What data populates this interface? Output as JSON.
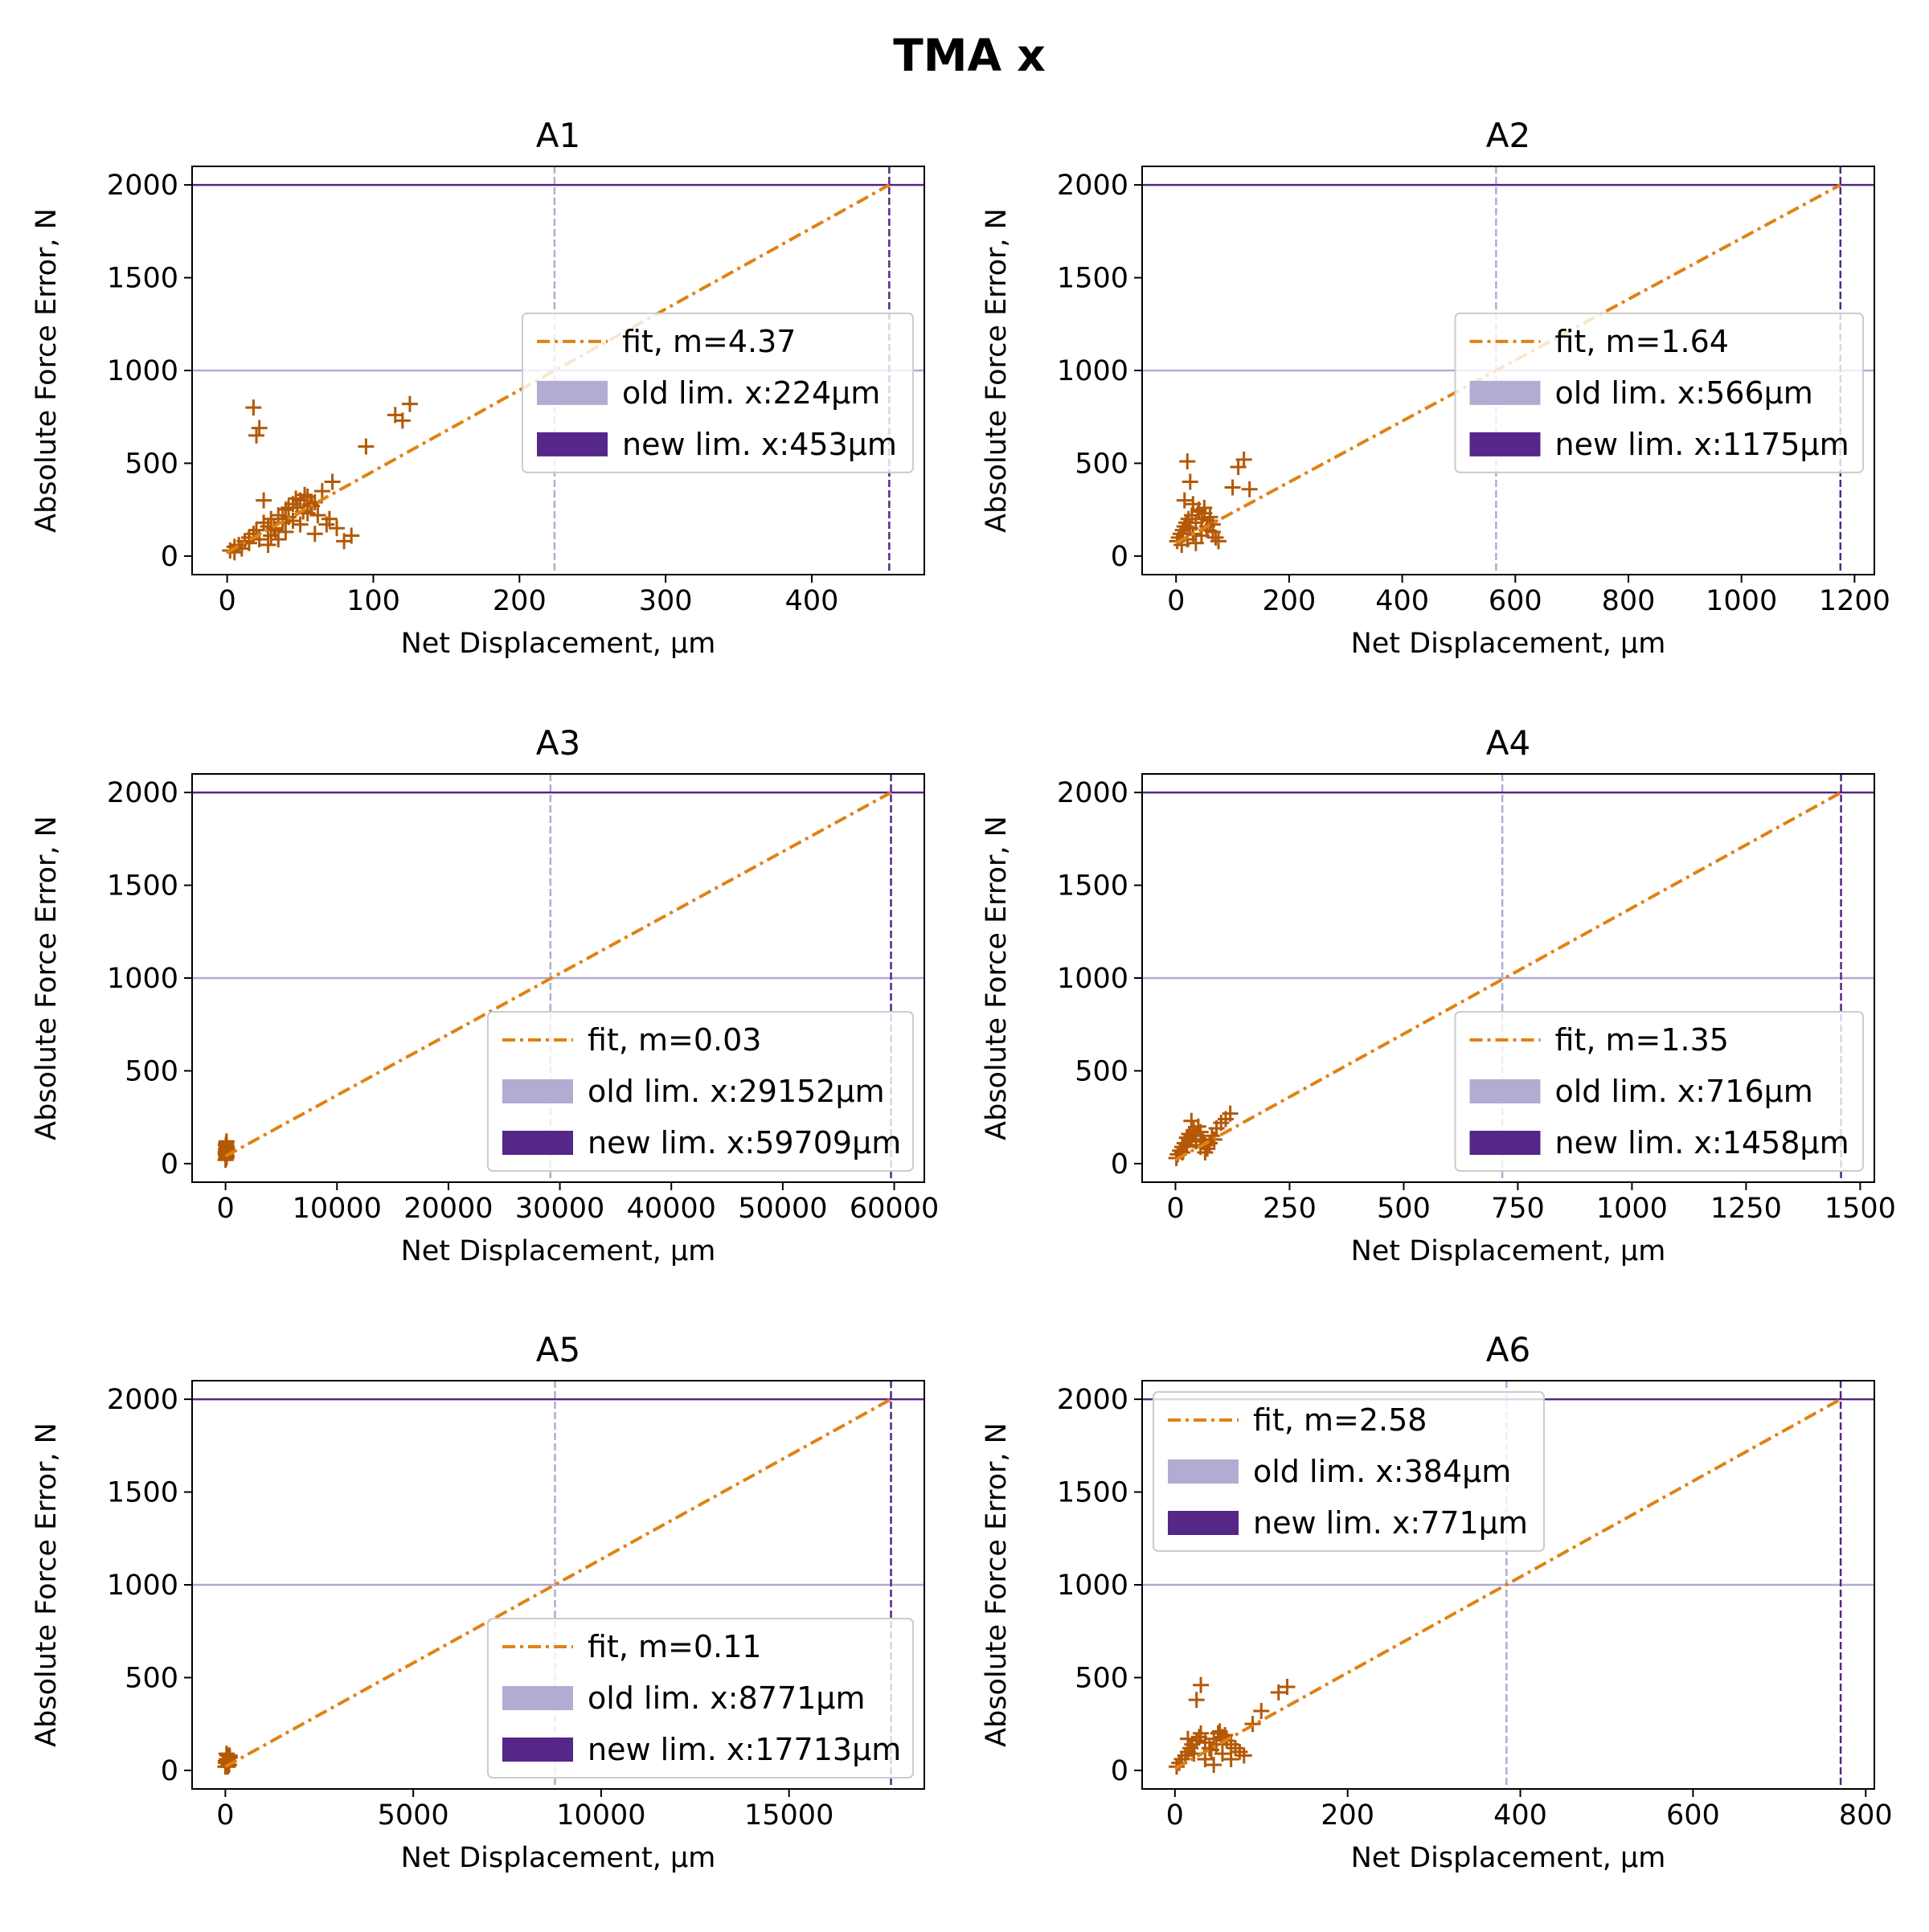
{
  "figure": {
    "title": "TMA x"
  },
  "colors": {
    "points": "#b35806",
    "fit": "#e08214",
    "old_limit": "#b2abd2",
    "new_limit": "#542788",
    "axes": "#000000"
  },
  "chart_data": [
    {
      "type": "scatter",
      "title": "A1",
      "xlabel": "Net Displacement, μm",
      "ylabel": "Absolute Force Error, N",
      "xlim": [
        -24,
        477
      ],
      "ylim": [
        -100,
        2100
      ],
      "xticks": [
        0,
        100,
        200,
        300,
        400
      ],
      "yticks": [
        0,
        500,
        1000,
        1500,
        2000
      ],
      "legend_position": "center-right",
      "fit": {
        "label": "fit, m=4.37",
        "slope": 4.37,
        "x": [
          0,
          453
        ],
        "y": [
          20,
          2000
        ]
      },
      "old_limit": {
        "label": "old lim. x:224μm",
        "x": 224,
        "y": 1000
      },
      "new_limit": {
        "label": "new lim. x:453μm",
        "x": 453,
        "y": 2000
      },
      "points": {
        "x": [
          2,
          5,
          8,
          12,
          15,
          18,
          20,
          22,
          25,
          28,
          30,
          32,
          35,
          38,
          40,
          42,
          45,
          48,
          50,
          52,
          55,
          58,
          60,
          65,
          70,
          75,
          80,
          85,
          20,
          22,
          18,
          25,
          95,
          115,
          120,
          125,
          5,
          10,
          15,
          30,
          40,
          50,
          35,
          45,
          55,
          60,
          28,
          33,
          38,
          42,
          47,
          53,
          57,
          62,
          68,
          72
        ],
        "y": [
          30,
          50,
          60,
          80,
          100,
          120,
          140,
          90,
          180,
          160,
          200,
          150,
          220,
          180,
          250,
          210,
          280,
          260,
          300,
          240,
          320,
          270,
          290,
          350,
          200,
          150,
          80,
          110,
          650,
          690,
          800,
          300,
          590,
          760,
          730,
          820,
          20,
          40,
          70,
          110,
          130,
          170,
          90,
          190,
          230,
          120,
          60,
          140,
          200,
          260,
          310,
          330,
          280,
          220,
          170,
          400
        ]
      }
    },
    {
      "type": "scatter",
      "title": "A2",
      "xlabel": "Net Displacement, μm",
      "ylabel": "Absolute Force Error, N",
      "xlim": [
        -60,
        1235
      ],
      "ylim": [
        -100,
        2100
      ],
      "xticks": [
        0,
        200,
        400,
        600,
        800,
        1000,
        1200
      ],
      "yticks": [
        0,
        500,
        1000,
        1500,
        2000
      ],
      "legend_position": "center-right",
      "fit": {
        "label": "fit, m=1.64",
        "slope": 1.64,
        "x": [
          0,
          1175
        ],
        "y": [
          70,
          2000
        ]
      },
      "old_limit": {
        "label": "old lim. x:566μm",
        "x": 566,
        "y": 1000
      },
      "new_limit": {
        "label": "new lim. x:1175μm",
        "x": 1175,
        "y": 2000
      },
      "points": {
        "x": [
          2,
          5,
          8,
          10,
          12,
          15,
          18,
          20,
          22,
          25,
          28,
          30,
          35,
          40,
          45,
          50,
          55,
          60,
          65,
          70,
          75,
          20,
          25,
          100,
          110,
          120,
          130,
          15,
          30,
          40,
          50,
          60,
          45,
          35,
          55,
          65
        ],
        "y": [
          80,
          100,
          120,
          60,
          140,
          160,
          180,
          90,
          200,
          150,
          220,
          120,
          180,
          240,
          200,
          260,
          160,
          210,
          130,
          100,
          80,
          510,
          400,
          370,
          480,
          520,
          360,
          300,
          280,
          250,
          230,
          190,
          110,
          70,
          140,
          170
        ]
      }
    },
    {
      "type": "scatter",
      "title": "A3",
      "xlabel": "Net Displacement, μm",
      "ylabel": "Absolute Force Error, N",
      "xlim": [
        -3000,
        62700
      ],
      "ylim": [
        -100,
        2100
      ],
      "xticks": [
        0,
        10000,
        20000,
        30000,
        40000,
        50000,
        60000
      ],
      "yticks": [
        0,
        500,
        1000,
        1500,
        2000
      ],
      "legend_position": "lower-right",
      "fit": {
        "label": "fit, m=0.03",
        "slope": 0.03,
        "x": [
          0,
          59709
        ],
        "y": [
          40,
          2000
        ]
      },
      "old_limit": {
        "label": "old lim. x:29152μm",
        "x": 29152,
        "y": 1000
      },
      "new_limit": {
        "label": "new lim. x:59709μm",
        "x": 59709,
        "y": 2000
      },
      "points": {
        "x": [
          0,
          20,
          40,
          60,
          80,
          100,
          120,
          30,
          50,
          70,
          90,
          10,
          110,
          65,
          45
        ],
        "y": [
          20,
          50,
          80,
          110,
          60,
          40,
          90,
          100,
          70,
          30,
          120,
          60,
          80,
          40,
          100
        ]
      }
    },
    {
      "type": "scatter",
      "title": "A4",
      "xlabel": "Net Displacement, μm",
      "ylabel": "Absolute Force Error, N",
      "xlim": [
        -73,
        1531
      ],
      "ylim": [
        -100,
        2100
      ],
      "xticks": [
        0,
        250,
        500,
        750,
        1000,
        1250,
        1500
      ],
      "yticks": [
        0,
        500,
        1000,
        1500,
        2000
      ],
      "legend_position": "lower-right",
      "fit": {
        "label": "fit, m=1.35",
        "slope": 1.35,
        "x": [
          0,
          1458
        ],
        "y": [
          20,
          2000
        ]
      },
      "old_limit": {
        "label": "old lim. x:716μm",
        "x": 716,
        "y": 1000
      },
      "new_limit": {
        "label": "new lim. x:1458μm",
        "x": 1458,
        "y": 2000
      },
      "points": {
        "x": [
          2,
          5,
          10,
          15,
          20,
          25,
          30,
          35,
          40,
          45,
          50,
          55,
          60,
          65,
          70,
          75,
          80,
          90,
          100,
          110,
          120,
          15,
          25,
          35,
          45,
          55,
          65,
          85
        ],
        "y": [
          30,
          50,
          70,
          90,
          110,
          140,
          160,
          130,
          180,
          150,
          200,
          170,
          120,
          100,
          80,
          110,
          150,
          190,
          220,
          240,
          270,
          60,
          100,
          230,
          120,
          90,
          60,
          130
        ]
      }
    },
    {
      "type": "scatter",
      "title": "A5",
      "xlabel": "Net Displacement, μm",
      "ylabel": "Absolute Force Error, N",
      "xlim": [
        -885,
        18600
      ],
      "ylim": [
        -100,
        2100
      ],
      "xticks": [
        0,
        5000,
        10000,
        15000
      ],
      "yticks": [
        0,
        500,
        1000,
        1500,
        2000
      ],
      "legend_position": "lower-right",
      "fit": {
        "label": "fit, m=0.11",
        "slope": 0.11,
        "x": [
          0,
          17713
        ],
        "y": [
          20,
          2000
        ]
      },
      "old_limit": {
        "label": "old lim. x:8771μm",
        "x": 8771,
        "y": 1000
      },
      "new_limit": {
        "label": "new lim. x:17713μm",
        "x": 17713,
        "y": 2000
      },
      "points": {
        "x": [
          0,
          20,
          40,
          60,
          80,
          100,
          120,
          30,
          50,
          70,
          90,
          10,
          110,
          65
        ],
        "y": [
          20,
          40,
          60,
          80,
          50,
          30,
          70,
          90,
          40,
          60,
          30,
          50,
          80,
          20
        ]
      }
    },
    {
      "type": "scatter",
      "title": "A6",
      "xlabel": "Net Displacement, μm",
      "ylabel": "Absolute Force Error, N",
      "xlim": [
        -38,
        810
      ],
      "ylim": [
        -100,
        2100
      ],
      "xticks": [
        0,
        200,
        400,
        600,
        800
      ],
      "yticks": [
        0,
        500,
        1000,
        1500,
        2000
      ],
      "legend_position": "upper-left",
      "fit": {
        "label": "fit, m=2.58",
        "slope": 2.58,
        "x": [
          0,
          771
        ],
        "y": [
          10,
          2000
        ]
      },
      "old_limit": {
        "label": "old lim. x:384μm",
        "x": 384,
        "y": 1000
      },
      "new_limit": {
        "label": "new lim. x:771μm",
        "x": 771,
        "y": 2000
      },
      "points": {
        "x": [
          2,
          5,
          8,
          12,
          15,
          18,
          20,
          22,
          25,
          28,
          30,
          35,
          40,
          45,
          50,
          55,
          60,
          65,
          70,
          75,
          80,
          90,
          100,
          120,
          130,
          25,
          30,
          15,
          35,
          45,
          55,
          65,
          42,
          48,
          52,
          58
        ],
        "y": [
          20,
          40,
          60,
          80,
          100,
          120,
          140,
          90,
          160,
          180,
          200,
          150,
          120,
          170,
          200,
          180,
          160,
          140,
          120,
          100,
          80,
          250,
          320,
          420,
          450,
          380,
          460,
          170,
          60,
          30,
          90,
          60,
          110,
          140,
          210,
          190
        ]
      }
    }
  ]
}
